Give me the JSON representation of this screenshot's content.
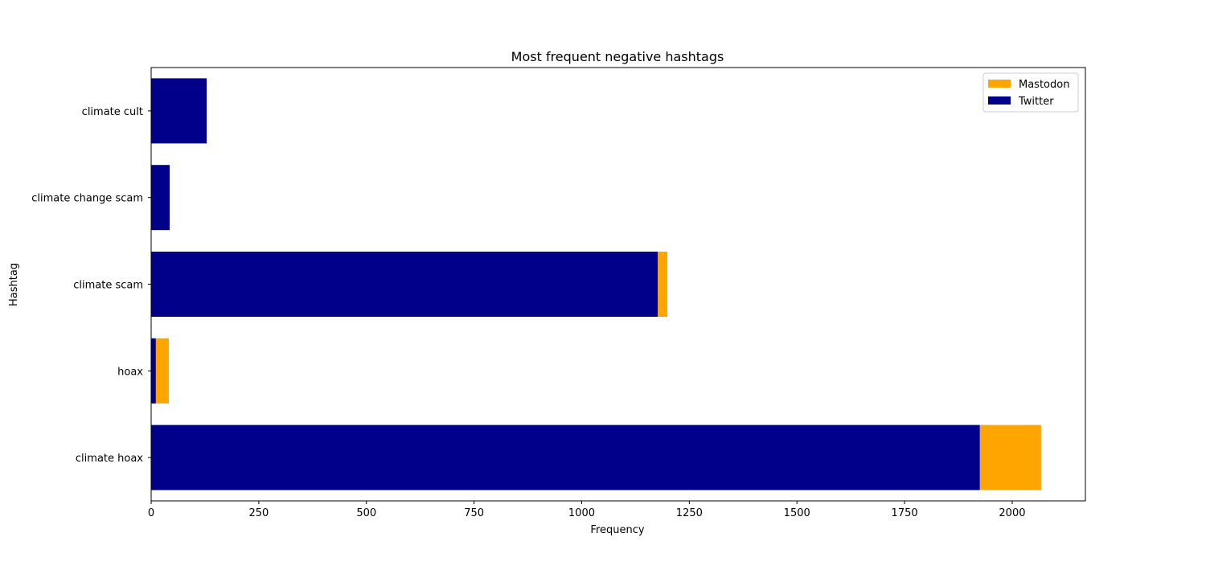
{
  "chart_data": {
    "type": "bar",
    "orientation": "horizontal",
    "stacked": true,
    "title": "Most frequent negative hashtags",
    "xlabel": "Frequency",
    "ylabel": "Hashtag",
    "categories": [
      "climate hoax",
      "hoax",
      "climate scam",
      "climate change scam",
      "climate cult"
    ],
    "series": [
      {
        "name": "Twitter",
        "color": "#00008b",
        "values": [
          1925,
          11,
          1177,
          43,
          129
        ]
      },
      {
        "name": "Mastodon",
        "color": "#ffa500",
        "values": [
          142,
          30,
          22,
          0,
          0
        ]
      }
    ],
    "xlim": [
      0,
      2170
    ],
    "xticks": [
      0,
      250,
      500,
      750,
      1000,
      1250,
      1500,
      1750,
      2000
    ],
    "grid": false,
    "legend": {
      "position": "top-right",
      "order": [
        "Mastodon",
        "Twitter"
      ]
    }
  }
}
